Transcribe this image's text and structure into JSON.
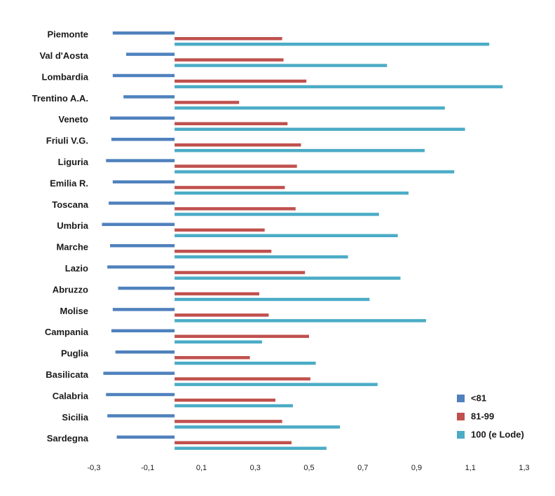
{
  "chart_data": {
    "type": "bar",
    "orientation": "horizontal",
    "categories": [
      "Piemonte",
      "Val d'Aosta",
      "Lombardia",
      "Trentino A.A.",
      "Veneto",
      "Friuli V.G.",
      "Liguria",
      "Emilia R.",
      "Toscana",
      "Umbria",
      "Marche",
      "Lazio",
      "Abruzzo",
      "Molise",
      "Campania",
      "Puglia",
      "Basilicata",
      "Calabria",
      "Sicilia",
      "Sardegna"
    ],
    "series": [
      {
        "name": "<81",
        "color": "#4F81BD",
        "values": [
          -0.23,
          -0.18,
          -0.23,
          -0.19,
          -0.24,
          -0.235,
          -0.255,
          -0.23,
          -0.245,
          -0.27,
          -0.24,
          -0.25,
          -0.21,
          -0.23,
          -0.235,
          -0.22,
          -0.265,
          -0.255,
          -0.25,
          -0.215
        ]
      },
      {
        "name": "81-99",
        "color": "#C0504D",
        "values": [
          0.4,
          0.405,
          0.49,
          0.24,
          0.42,
          0.47,
          0.455,
          0.41,
          0.45,
          0.335,
          0.36,
          0.485,
          0.315,
          0.35,
          0.5,
          0.28,
          0.505,
          0.375,
          0.4,
          0.435
        ]
      },
      {
        "name": "100 (e Lode)",
        "color": "#4BACC6",
        "values": [
          1.17,
          0.79,
          1.22,
          1.005,
          1.08,
          0.93,
          1.04,
          0.87,
          0.76,
          0.83,
          0.645,
          0.84,
          0.725,
          0.935,
          0.325,
          0.525,
          0.755,
          0.44,
          0.615,
          0.565
        ]
      }
    ],
    "xlim": [
      -0.3,
      1.3
    ],
    "xticks": [
      "-0,3",
      "-0,1",
      "0,1",
      "0,3",
      "0,5",
      "0,7",
      "0,9",
      "1,1",
      "1,3"
    ],
    "title": "",
    "xlabel": "",
    "ylabel": "",
    "grid": false,
    "legend_position": "bottom-right"
  }
}
